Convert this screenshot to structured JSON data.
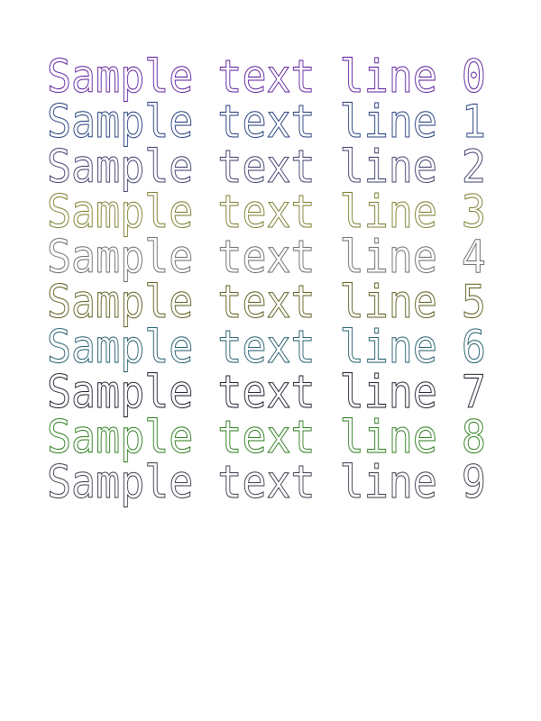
{
  "lines": [
    {
      "text": "Sample text line 0",
      "color": "#5a1a9a"
    },
    {
      "text": "Sample text line 1",
      "color": "#1f3a7a"
    },
    {
      "text": "Sample text line 2",
      "color": "#3a3a6a"
    },
    {
      "text": "Sample text line 3",
      "color": "#7a7a2a"
    },
    {
      "text": "Sample text line 4",
      "color": "#6a6a6a"
    },
    {
      "text": "Sample text line 5",
      "color": "#5a5a1a"
    },
    {
      "text": "Sample text line 6",
      "color": "#1f5a6a"
    },
    {
      "text": "Sample text line 7",
      "color": "#1a1a2a"
    },
    {
      "text": "Sample text line 8",
      "color": "#2a7a1a"
    },
    {
      "text": "Sample text line 9",
      "color": "#3a3a4a"
    }
  ]
}
